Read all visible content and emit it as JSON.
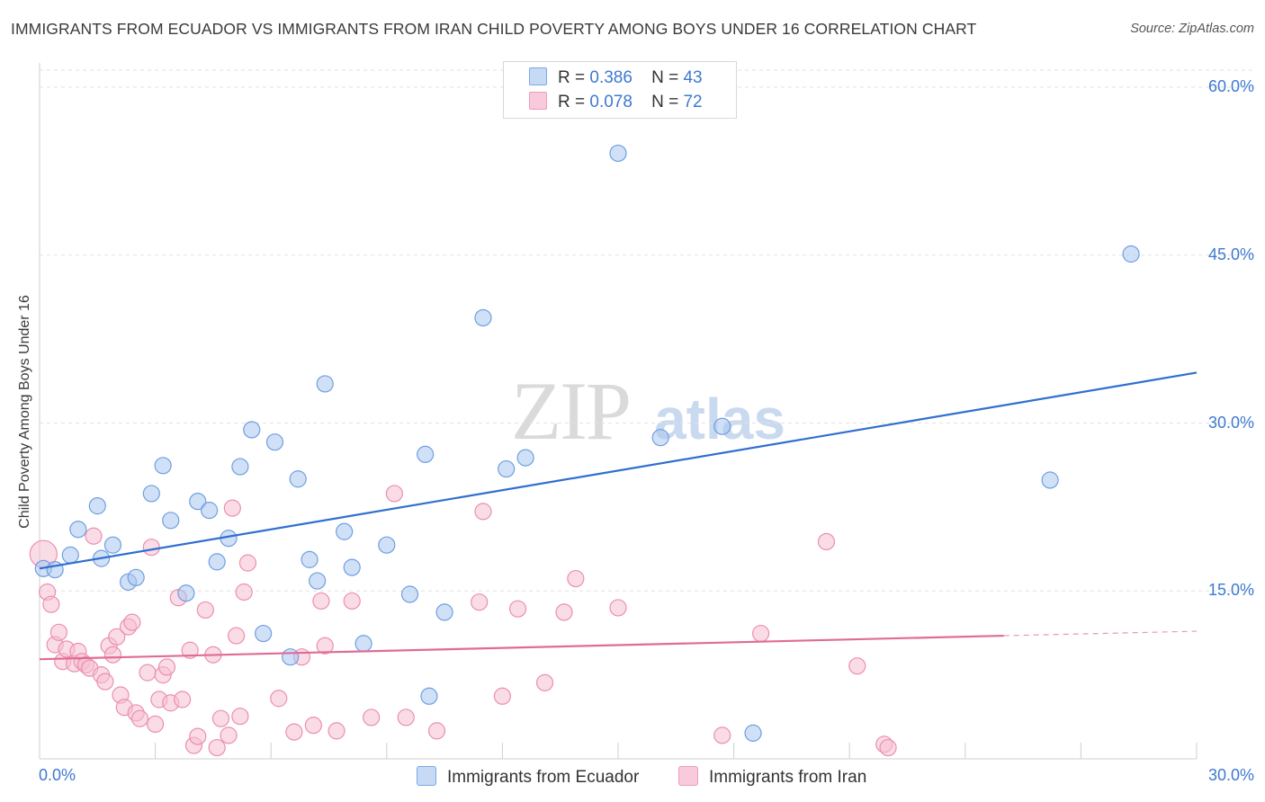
{
  "chart_data": {
    "type": "scatter",
    "title": "IMMIGRANTS FROM ECUADOR VS IMMIGRANTS FROM IRAN CHILD POVERTY AMONG BOYS UNDER 16 CORRELATION CHART",
    "source": "Source: ZipAtlas.com",
    "ylabel": "Child Poverty Among Boys Under 16",
    "xlim": [
      0,
      30
    ],
    "ylim": [
      0,
      60
    ],
    "x_ticks": [
      "0.0%",
      "30.0%"
    ],
    "y_ticks": [
      {
        "value": 15,
        "label": "15.0%"
      },
      {
        "value": 30,
        "label": "30.0%"
      },
      {
        "value": 45,
        "label": "45.0%"
      },
      {
        "value": 60,
        "label": "60.0%"
      }
    ],
    "grid": true,
    "legend_position": "top-center",
    "watermark": "ZIPatlas",
    "series": [
      {
        "name": "Immigrants from Ecuador",
        "color": "#a9c6f0",
        "stroke": "#6f9fe0",
        "line_color": "#2f6fcf",
        "r_label": "R =",
        "r_value": "0.386",
        "n_label": "N =",
        "n_value": "43",
        "trend": {
          "x0": 0,
          "y0": 17.0,
          "x1": 30,
          "y1": 34.5
        },
        "points": [
          [
            0.1,
            17.0
          ],
          [
            0.4,
            16.9
          ],
          [
            0.8,
            18.2
          ],
          [
            1.0,
            20.5
          ],
          [
            1.5,
            22.6
          ],
          [
            1.6,
            17.9
          ],
          [
            1.9,
            19.1
          ],
          [
            2.3,
            15.8
          ],
          [
            2.5,
            16.2
          ],
          [
            2.9,
            23.7
          ],
          [
            3.2,
            26.2
          ],
          [
            3.4,
            21.3
          ],
          [
            3.8,
            14.8
          ],
          [
            4.1,
            23.0
          ],
          [
            4.4,
            22.2
          ],
          [
            4.6,
            17.6
          ],
          [
            4.9,
            19.7
          ],
          [
            5.2,
            26.1
          ],
          [
            5.5,
            29.4
          ],
          [
            5.8,
            11.2
          ],
          [
            6.1,
            28.3
          ],
          [
            6.5,
            9.1
          ],
          [
            6.7,
            25.0
          ],
          [
            7.0,
            17.8
          ],
          [
            7.2,
            15.9
          ],
          [
            7.4,
            33.5
          ],
          [
            7.9,
            20.3
          ],
          [
            8.1,
            17.1
          ],
          [
            8.4,
            10.3
          ],
          [
            9.0,
            19.1
          ],
          [
            9.6,
            14.7
          ],
          [
            10.0,
            27.2
          ],
          [
            10.1,
            5.6
          ],
          [
            10.5,
            13.1
          ],
          [
            11.5,
            39.4
          ],
          [
            12.1,
            25.9
          ],
          [
            12.6,
            26.9
          ],
          [
            15.0,
            54.1
          ],
          [
            16.1,
            28.7
          ],
          [
            17.7,
            29.7
          ],
          [
            18.5,
            2.3
          ],
          [
            26.2,
            24.9
          ],
          [
            28.3,
            45.1
          ]
        ]
      },
      {
        "name": "Immigrants from Iran",
        "color": "#f5bfd1",
        "stroke": "#eb8fae",
        "line_color": "#e06b96",
        "r_label": "R =",
        "r_value": "0.078",
        "n_label": "N =",
        "n_value": "72",
        "trend": {
          "x0": 0,
          "y0": 8.9,
          "x1": 25,
          "y1": 11.0
        },
        "trend_dashed_to": {
          "x": 30,
          "y": 11.4
        },
        "points": [
          [
            0.1,
            18.3
          ],
          [
            0.2,
            14.9
          ],
          [
            0.3,
            13.8
          ],
          [
            0.4,
            10.2
          ],
          [
            0.5,
            11.3
          ],
          [
            0.6,
            8.7
          ],
          [
            0.7,
            9.8
          ],
          [
            0.9,
            8.5
          ],
          [
            1.0,
            9.6
          ],
          [
            1.1,
            8.7
          ],
          [
            1.2,
            8.4
          ],
          [
            1.3,
            8.1
          ],
          [
            1.4,
            19.9
          ],
          [
            1.6,
            7.5
          ],
          [
            1.7,
            6.9
          ],
          [
            1.8,
            10.1
          ],
          [
            1.9,
            9.3
          ],
          [
            2.0,
            10.9
          ],
          [
            2.1,
            5.7
          ],
          [
            2.2,
            4.6
          ],
          [
            2.3,
            11.8
          ],
          [
            2.4,
            12.2
          ],
          [
            2.5,
            4.1
          ],
          [
            2.6,
            3.6
          ],
          [
            2.8,
            7.7
          ],
          [
            2.9,
            18.9
          ],
          [
            3.0,
            3.1
          ],
          [
            3.1,
            5.3
          ],
          [
            3.2,
            7.5
          ],
          [
            3.3,
            8.2
          ],
          [
            3.4,
            5.0
          ],
          [
            3.6,
            14.4
          ],
          [
            3.7,
            5.3
          ],
          [
            3.9,
            9.7
          ],
          [
            4.0,
            1.2
          ],
          [
            4.1,
            2.0
          ],
          [
            4.3,
            13.3
          ],
          [
            4.5,
            9.3
          ],
          [
            4.6,
            1.0
          ],
          [
            4.7,
            3.6
          ],
          [
            4.9,
            2.1
          ],
          [
            5.0,
            22.4
          ],
          [
            5.1,
            11.0
          ],
          [
            5.2,
            3.8
          ],
          [
            5.3,
            14.9
          ],
          [
            5.4,
            17.5
          ],
          [
            6.2,
            5.4
          ],
          [
            6.6,
            2.4
          ],
          [
            6.8,
            9.1
          ],
          [
            7.1,
            3.0
          ],
          [
            7.3,
            14.1
          ],
          [
            7.4,
            10.1
          ],
          [
            7.7,
            2.5
          ],
          [
            8.1,
            14.1
          ],
          [
            8.6,
            3.7
          ],
          [
            9.2,
            23.7
          ],
          [
            9.5,
            3.7
          ],
          [
            10.3,
            2.5
          ],
          [
            11.4,
            14.0
          ],
          [
            11.5,
            22.1
          ],
          [
            12.0,
            5.6
          ],
          [
            12.4,
            13.4
          ],
          [
            13.1,
            6.8
          ],
          [
            13.6,
            13.1
          ],
          [
            13.9,
            16.1
          ],
          [
            15.0,
            13.5
          ],
          [
            17.7,
            2.1
          ],
          [
            18.7,
            11.2
          ],
          [
            20.4,
            19.4
          ],
          [
            21.2,
            8.3
          ],
          [
            21.9,
            1.3
          ],
          [
            22.0,
            1.0
          ]
        ]
      }
    ]
  }
}
